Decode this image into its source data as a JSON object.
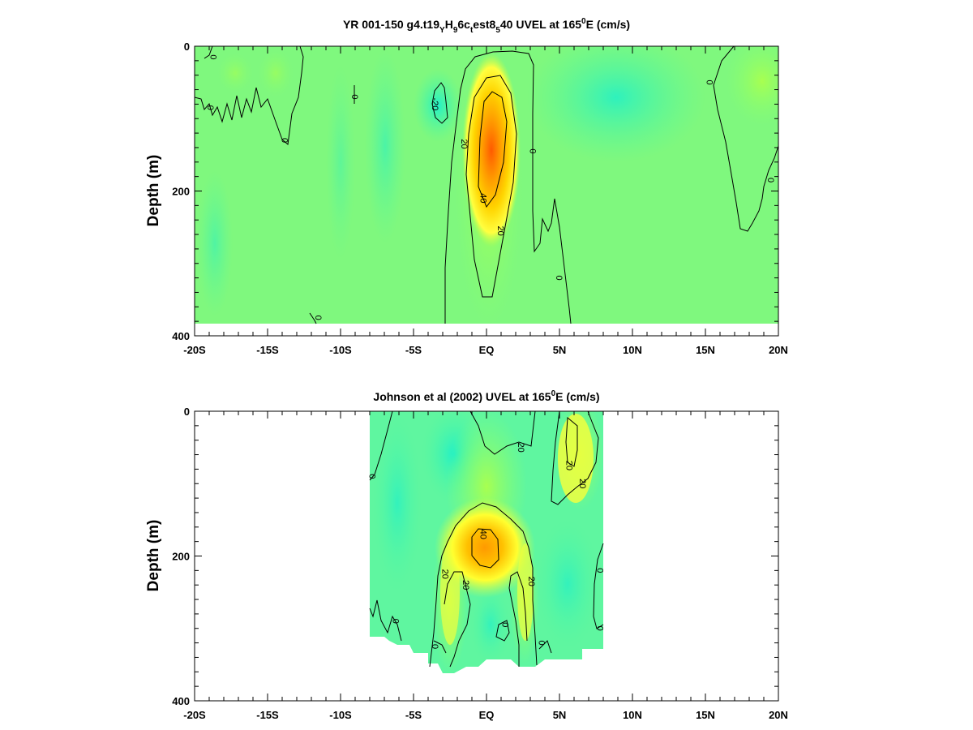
{
  "chart_data": [
    {
      "type": "heatmap",
      "title_main": "YR 001-150 g4.t19",
      "title_sub1": "Y",
      "title_mid1": "H",
      "title_sub2": "9",
      "title_mid2": "6c",
      "title_sub3": "t",
      "title_mid3": "est8",
      "title_sub4": "5",
      "title_tail": "40 UVEL at 165",
      "title_sup": "0",
      "title_end": "E (cm/s)",
      "ylabel": "Depth (m)",
      "xlim": [
        -20,
        20
      ],
      "ylim": [
        0,
        400
      ],
      "y_reversed": true,
      "x_ticks": [
        "-20S",
        "-15S",
        "-10S",
        "-5S",
        "EQ",
        "5N",
        "10N",
        "15N",
        "20N"
      ],
      "y_ticks": [
        "0",
        "200",
        "400"
      ],
      "data_depth_max": 385,
      "contour_levels": [
        -20,
        0,
        20,
        40
      ],
      "contour_labels": [
        {
          "text": "0",
          "lat": -18.7,
          "depth": 15
        },
        {
          "text": "0",
          "lat": -18.9,
          "depth": 85
        },
        {
          "text": "0",
          "lat": -13.8,
          "depth": 130
        },
        {
          "text": "0",
          "lat": -9.0,
          "depth": 70
        },
        {
          "text": "-20",
          "lat": -3.5,
          "depth": 80
        },
        {
          "text": "20",
          "lat": -1.5,
          "depth": 135
        },
        {
          "text": "0",
          "lat": 3.2,
          "depth": 145
        },
        {
          "text": "40",
          "lat": -0.2,
          "depth": 210
        },
        {
          "text": "20",
          "lat": 1.0,
          "depth": 255
        },
        {
          "text": "0",
          "lat": 5.0,
          "depth": 320
        },
        {
          "text": "0",
          "lat": 15.3,
          "depth": 50
        },
        {
          "text": "0",
          "lat": 19.5,
          "depth": 185
        },
        {
          "text": "0",
          "lat": -11.5,
          "depth": 375
        }
      ]
    },
    {
      "type": "heatmap",
      "title_main": "Johnson et al (2002) UVEL at 165",
      "title_sup": "0",
      "title_end": "E (cm/s)",
      "ylabel": "Depth (m)",
      "xlim": [
        -20,
        20
      ],
      "ylim": [
        0,
        400
      ],
      "y_reversed": true,
      "x_ticks": [
        "-20S",
        "-15S",
        "-10S",
        "-5S",
        "EQ",
        "5N",
        "10N",
        "15N",
        "20N"
      ],
      "y_ticks": [
        "0",
        "200",
        "400"
      ],
      "data_lat_range": [
        -8,
        8
      ],
      "contour_levels": [
        0,
        20,
        40
      ],
      "contour_labels": [
        {
          "text": "0",
          "lat": -7.8,
          "depth": 90
        },
        {
          "text": "20",
          "lat": 2.4,
          "depth": 50
        },
        {
          "text": "20",
          "lat": 5.7,
          "depth": 75
        },
        {
          "text": "20",
          "lat": 6.6,
          "depth": 100
        },
        {
          "text": "40",
          "lat": -0.2,
          "depth": 170
        },
        {
          "text": "20",
          "lat": -2.8,
          "depth": 225
        },
        {
          "text": "20",
          "lat": -1.4,
          "depth": 240
        },
        {
          "text": "20",
          "lat": 3.1,
          "depth": 235
        },
        {
          "text": "0",
          "lat": 7.8,
          "depth": 220
        },
        {
          "text": "0",
          "lat": 7.8,
          "depth": 300
        },
        {
          "text": "0",
          "lat": 1.3,
          "depth": 295
        },
        {
          "text": "0",
          "lat": -3.5,
          "depth": 325
        },
        {
          "text": "0",
          "lat": 3.8,
          "depth": 320
        },
        {
          "text": "0",
          "lat": -6.2,
          "depth": 290
        }
      ]
    }
  ]
}
